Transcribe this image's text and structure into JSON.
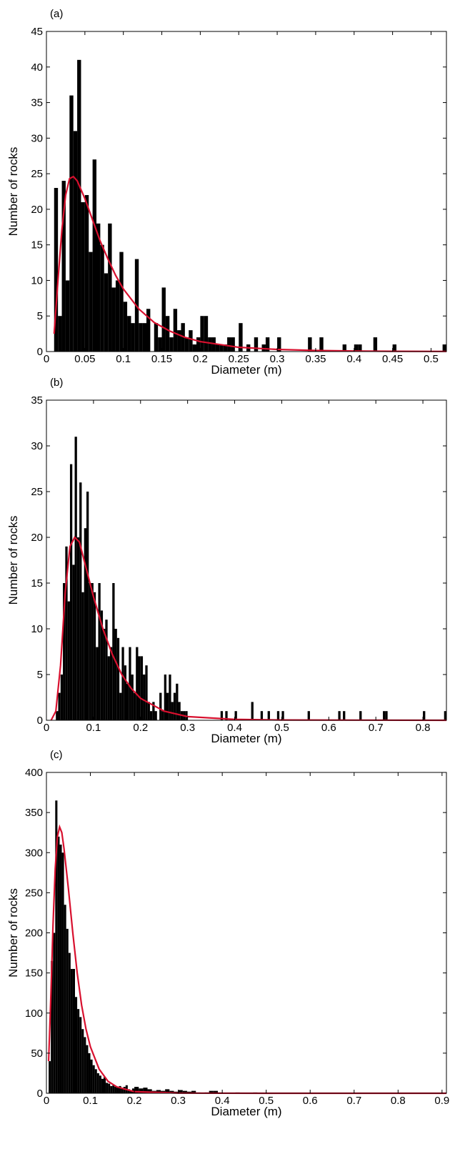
{
  "chart_data": [
    {
      "type": "histogram",
      "panel_label": "(a)",
      "xlabel": "Diameter (m)",
      "ylabel": "Number of rocks",
      "color": "#000000",
      "bins": [
        0.01,
        0.015,
        0.02,
        0.025,
        0.03,
        0.035,
        0.04,
        0.045,
        0.05,
        0.055,
        0.06,
        0.065,
        0.07,
        0.075,
        0.08,
        0.085,
        0.09,
        0.095,
        0.1,
        0.105,
        0.11,
        0.115,
        0.12,
        0.125,
        0.13,
        0.135,
        0.14,
        0.145,
        0.15,
        0.155,
        0.16,
        0.165,
        0.17,
        0.175,
        0.18,
        0.185,
        0.19,
        0.195,
        0.2,
        0.205,
        0.21,
        0.215,
        0.22,
        0.225,
        0.23,
        0.235,
        0.24,
        0.245,
        0.25,
        0.255,
        0.26,
        0.265,
        0.27,
        0.275,
        0.28,
        0.285,
        0.29,
        0.295,
        0.3,
        0.305,
        0.34,
        0.345,
        0.355,
        0.36,
        0.385,
        0.39,
        0.4,
        0.405,
        0.41,
        0.425,
        0.43,
        0.45,
        0.455,
        0.515,
        0.52
      ],
      "counts": [
        23,
        5,
        24,
        10,
        36,
        31,
        41,
        21,
        22,
        14,
        27,
        18,
        15,
        11,
        18,
        9,
        10,
        14,
        7,
        5,
        4,
        13,
        4,
        4,
        6,
        0,
        4,
        2,
        9,
        5,
        2,
        6,
        3,
        4,
        2,
        3,
        1,
        2,
        5,
        5,
        2,
        2,
        1,
        1,
        1,
        2,
        2,
        0,
        4,
        0,
        1,
        0,
        2,
        0,
        1,
        2,
        0,
        0,
        2,
        0,
        2,
        0,
        2,
        0,
        1,
        0,
        1,
        1,
        0,
        2,
        0,
        1,
        0,
        1
      ],
      "fit": {
        "color": "#d8102e",
        "x": [
          0.01,
          0.015,
          0.02,
          0.025,
          0.03,
          0.035,
          0.04,
          0.05,
          0.06,
          0.07,
          0.08,
          0.09,
          0.1,
          0.12,
          0.14,
          0.16,
          0.18,
          0.2,
          0.25,
          0.3,
          0.35,
          0.4,
          0.45,
          0.52
        ],
        "values": [
          2.5,
          10,
          17,
          22,
          24.3,
          24.6,
          24,
          21.5,
          18.5,
          15.5,
          13,
          10.7,
          8.8,
          6,
          4.1,
          2.9,
          2,
          1.4,
          0.6,
          0.3,
          0.15,
          0.08,
          0.04,
          0.02
        ]
      },
      "xlim": [
        0,
        0.52
      ],
      "ylim": [
        0,
        45
      ],
      "xticks": [
        0,
        0.05,
        0.1,
        0.15,
        0.2,
        0.25,
        0.3,
        0.35,
        0.4,
        0.45,
        0.5
      ],
      "yticks": [
        0,
        5,
        10,
        15,
        20,
        25,
        30,
        35,
        40,
        45
      ]
    },
    {
      "type": "histogram",
      "panel_label": "(b)",
      "xlabel": "Diameter (m)",
      "ylabel": "Number of rocks",
      "color": "#000000",
      "bins": [
        0.02,
        0.025,
        0.03,
        0.035,
        0.04,
        0.045,
        0.05,
        0.055,
        0.06,
        0.065,
        0.07,
        0.075,
        0.08,
        0.085,
        0.09,
        0.095,
        0.1,
        0.105,
        0.11,
        0.115,
        0.12,
        0.125,
        0.13,
        0.135,
        0.14,
        0.145,
        0.15,
        0.155,
        0.16,
        0.165,
        0.17,
        0.175,
        0.18,
        0.185,
        0.19,
        0.195,
        0.2,
        0.205,
        0.21,
        0.215,
        0.22,
        0.225,
        0.23,
        0.235,
        0.24,
        0.245,
        0.25,
        0.255,
        0.26,
        0.265,
        0.27,
        0.275,
        0.28,
        0.285,
        0.29,
        0.295,
        0.3,
        0.37,
        0.375,
        0.38,
        0.385,
        0.4,
        0.405,
        0.435,
        0.44,
        0.455,
        0.46,
        0.47,
        0.475,
        0.49,
        0.495,
        0.5,
        0.505,
        0.555,
        0.56,
        0.62,
        0.625,
        0.63,
        0.635,
        0.665,
        0.67,
        0.715,
        0.72,
        0.725,
        0.8,
        0.805,
        0.845,
        0.85
      ],
      "counts": [
        1,
        3,
        5,
        15,
        19,
        13,
        28,
        17,
        31,
        20,
        26,
        14,
        21,
        25,
        15,
        15,
        14,
        8,
        15,
        12,
        10,
        11,
        7,
        8,
        15,
        10,
        9,
        3,
        8,
        6,
        4,
        8,
        5,
        3,
        8,
        7,
        7,
        5,
        6,
        2,
        1,
        2,
        1,
        0,
        3,
        1,
        5,
        3,
        5,
        2,
        3,
        4,
        2,
        1,
        1,
        1,
        0,
        1,
        0,
        1,
        0,
        1,
        0,
        2,
        0,
        1,
        0,
        1,
        0,
        1,
        0,
        1,
        0,
        1,
        0,
        1,
        0,
        1,
        0,
        1,
        0,
        1,
        1,
        0,
        1,
        0,
        1
      ],
      "fit": {
        "color": "#d8102e",
        "x": [
          0.01,
          0.02,
          0.03,
          0.04,
          0.05,
          0.06,
          0.07,
          0.08,
          0.1,
          0.12,
          0.14,
          0.16,
          0.18,
          0.2,
          0.25,
          0.3,
          0.4,
          0.5,
          0.85
        ],
        "values": [
          0,
          1,
          6,
          14,
          19,
          20,
          19.5,
          17.5,
          13.5,
          10,
          7.2,
          5,
          3.5,
          2.4,
          1,
          0.4,
          0.1,
          0.03,
          0
        ]
      },
      "xlim": [
        0,
        0.85
      ],
      "ylim": [
        0,
        35
      ],
      "xticks": [
        0,
        0.1,
        0.2,
        0.3,
        0.4,
        0.5,
        0.6,
        0.7,
        0.8
      ],
      "yticks": [
        0,
        5,
        10,
        15,
        20,
        25,
        30,
        35
      ]
    },
    {
      "type": "histogram",
      "panel_label": "(c)",
      "xlabel": "Diameter (m)",
      "ylabel": "Number of rocks",
      "color": "#000000",
      "bins": [
        0.005,
        0.01,
        0.015,
        0.02,
        0.025,
        0.03,
        0.035,
        0.04,
        0.045,
        0.05,
        0.055,
        0.06,
        0.065,
        0.07,
        0.075,
        0.08,
        0.085,
        0.09,
        0.095,
        0.1,
        0.105,
        0.11,
        0.115,
        0.12,
        0.125,
        0.13,
        0.135,
        0.14,
        0.145,
        0.15,
        0.155,
        0.16,
        0.165,
        0.17,
        0.175,
        0.18,
        0.185,
        0.19,
        0.195,
        0.2,
        0.21,
        0.22,
        0.23,
        0.24,
        0.25,
        0.26,
        0.27,
        0.28,
        0.29,
        0.3,
        0.31,
        0.32,
        0.33,
        0.34,
        0.35,
        0.36,
        0.37,
        0.38,
        0.39,
        0.4,
        0.43,
        0.44,
        0.47,
        0.48,
        0.91
      ],
      "counts": [
        40,
        165,
        200,
        365,
        320,
        310,
        300,
        235,
        205,
        175,
        155,
        155,
        120,
        105,
        95,
        80,
        70,
        60,
        50,
        42,
        35,
        30,
        25,
        22,
        18,
        20,
        13,
        12,
        9,
        10,
        8,
        7,
        9,
        6,
        8,
        10,
        5,
        4,
        6,
        8,
        6,
        7,
        5,
        3,
        4,
        3,
        5,
        3,
        2,
        4,
        3,
        2,
        3,
        1,
        0,
        1,
        3,
        3,
        1,
        0,
        1,
        0,
        1,
        0
      ],
      "fit": {
        "color": "#d8102e",
        "x": [
          0.005,
          0.01,
          0.015,
          0.02,
          0.025,
          0.03,
          0.035,
          0.04,
          0.05,
          0.06,
          0.07,
          0.08,
          0.09,
          0.1,
          0.12,
          0.14,
          0.16,
          0.2,
          0.3,
          0.5,
          0.91
        ],
        "values": [
          40,
          120,
          210,
          280,
          320,
          332,
          325,
          305,
          255,
          200,
          150,
          110,
          80,
          58,
          30,
          15,
          8,
          2,
          0.2,
          0,
          0
        ]
      },
      "xlim": [
        0,
        0.91
      ],
      "ylim": [
        0,
        400
      ],
      "xticks": [
        0,
        0.1,
        0.2,
        0.3,
        0.4,
        0.5,
        0.6,
        0.7,
        0.8,
        0.9
      ],
      "yticks": [
        0,
        50,
        100,
        150,
        200,
        250,
        300,
        350,
        400
      ]
    }
  ]
}
